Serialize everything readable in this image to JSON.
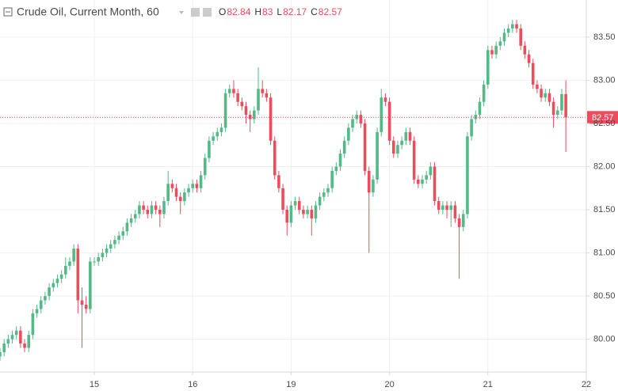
{
  "chart_data": {
    "type": "candlestick",
    "title": "Crude Oil, Current Month, 60",
    "ohlc_labels": [
      "O",
      "H",
      "L",
      "C"
    ],
    "up_color": "#53b987",
    "down_color": "#eb4d5c",
    "x": [
      -23,
      -22,
      -21,
      -20,
      -19,
      -18,
      -17,
      -16,
      -15,
      -14,
      -13,
      -12,
      -11,
      -10,
      -9,
      -8,
      -7,
      -6,
      -5,
      -4,
      -3,
      -2,
      -1,
      0,
      1,
      2,
      3,
      4,
      5,
      6,
      7,
      8,
      9,
      10,
      11,
      12,
      13,
      14,
      15,
      16,
      17,
      18,
      19,
      20,
      21,
      22,
      23,
      24,
      25,
      26,
      27,
      28,
      29,
      30,
      31,
      32,
      33,
      34,
      35,
      36,
      37,
      38,
      39,
      40,
      41,
      42,
      43,
      44,
      45,
      46,
      47,
      48,
      49,
      50,
      51,
      52,
      53,
      54,
      55,
      56,
      57,
      58,
      59,
      60,
      61,
      62,
      63,
      64,
      65,
      66,
      67,
      68,
      69,
      70,
      71,
      72,
      73,
      74,
      75,
      76,
      77,
      78,
      79,
      80,
      81,
      82,
      83,
      84,
      85,
      86,
      87,
      88,
      89,
      90,
      91,
      92,
      93,
      94,
      95,
      96,
      97,
      98,
      99,
      100,
      101,
      102,
      103,
      104,
      105,
      106,
      107,
      108,
      109,
      110,
      111,
      112,
      113,
      114,
      115
    ],
    "ohlc": [
      [
        79.8,
        79.9,
        79.75,
        79.85
      ],
      [
        79.85,
        80.0,
        79.8,
        79.95
      ],
      [
        79.95,
        80.05,
        79.9,
        80.0
      ],
      [
        80.0,
        80.1,
        79.95,
        80.05
      ],
      [
        80.05,
        80.15,
        80.0,
        80.1
      ],
      [
        80.1,
        80.15,
        79.9,
        79.95
      ],
      [
        79.95,
        80.0,
        79.85,
        79.9
      ],
      [
        79.9,
        80.1,
        79.85,
        80.05
      ],
      [
        80.05,
        80.35,
        80.0,
        80.3
      ],
      [
        80.3,
        80.4,
        80.25,
        80.35
      ],
      [
        80.35,
        80.5,
        80.3,
        80.45
      ],
      [
        80.45,
        80.55,
        80.4,
        80.5
      ],
      [
        80.5,
        80.65,
        80.45,
        80.6
      ],
      [
        80.6,
        80.7,
        80.55,
        80.65
      ],
      [
        80.65,
        80.75,
        80.6,
        80.7
      ],
      [
        80.7,
        80.8,
        80.65,
        80.75
      ],
      [
        80.75,
        80.95,
        80.7,
        80.85
      ],
      [
        80.85,
        80.95,
        80.8,
        80.9
      ],
      [
        80.9,
        81.1,
        80.85,
        81.05
      ],
      [
        81.05,
        81.1,
        80.3,
        80.45
      ],
      [
        80.45,
        80.6,
        79.9,
        80.4
      ],
      [
        80.4,
        80.5,
        80.3,
        80.35
      ],
      [
        80.35,
        80.95,
        80.3,
        80.9
      ],
      [
        80.9,
        80.95,
        80.85,
        80.9
      ],
      [
        80.9,
        81.0,
        80.85,
        80.95
      ],
      [
        80.95,
        81.05,
        80.9,
        81.0
      ],
      [
        81.0,
        81.1,
        80.95,
        81.05
      ],
      [
        81.05,
        81.15,
        81.0,
        81.1
      ],
      [
        81.1,
        81.2,
        81.05,
        81.15
      ],
      [
        81.15,
        81.25,
        81.1,
        81.2
      ],
      [
        81.2,
        81.3,
        81.15,
        81.25
      ],
      [
        81.25,
        81.4,
        81.2,
        81.35
      ],
      [
        81.35,
        81.45,
        81.3,
        81.4
      ],
      [
        81.4,
        81.5,
        81.35,
        81.45
      ],
      [
        81.45,
        81.6,
        81.4,
        81.55
      ],
      [
        81.55,
        81.6,
        81.45,
        81.5
      ],
      [
        81.5,
        81.55,
        81.4,
        81.45
      ],
      [
        81.45,
        81.6,
        81.4,
        81.55
      ],
      [
        81.55,
        81.6,
        81.45,
        81.5
      ],
      [
        81.5,
        81.55,
        81.3,
        81.45
      ],
      [
        81.45,
        81.65,
        81.4,
        81.6
      ],
      [
        81.6,
        81.95,
        81.55,
        81.8
      ],
      [
        81.8,
        81.85,
        81.7,
        81.75
      ],
      [
        81.75,
        81.8,
        81.6,
        81.65
      ],
      [
        81.65,
        81.7,
        81.45,
        81.6
      ],
      [
        81.6,
        81.75,
        81.55,
        81.7
      ],
      [
        81.7,
        81.8,
        81.65,
        81.75
      ],
      [
        81.75,
        81.85,
        81.7,
        81.8
      ],
      [
        81.8,
        81.85,
        81.7,
        81.75
      ],
      [
        81.75,
        81.95,
        81.7,
        81.9
      ],
      [
        81.9,
        82.15,
        81.85,
        82.1
      ],
      [
        82.1,
        82.35,
        82.05,
        82.3
      ],
      [
        82.3,
        82.4,
        82.25,
        82.35
      ],
      [
        82.35,
        82.45,
        82.3,
        82.4
      ],
      [
        82.4,
        82.5,
        82.35,
        82.45
      ],
      [
        82.45,
        82.9,
        82.4,
        82.85
      ],
      [
        82.85,
        82.95,
        82.8,
        82.9
      ],
      [
        82.9,
        83.0,
        82.8,
        82.85
      ],
      [
        82.85,
        82.9,
        82.7,
        82.75
      ],
      [
        82.75,
        82.8,
        82.65,
        82.7
      ],
      [
        82.7,
        82.75,
        82.5,
        82.6
      ],
      [
        82.6,
        82.65,
        82.4,
        82.55
      ],
      [
        82.55,
        82.7,
        82.5,
        82.65
      ],
      [
        82.65,
        83.15,
        82.6,
        82.9
      ],
      [
        82.9,
        83.0,
        82.8,
        82.85
      ],
      [
        82.85,
        82.9,
        82.75,
        82.8
      ],
      [
        82.8,
        82.85,
        82.25,
        82.3
      ],
      [
        82.3,
        82.35,
        81.85,
        81.9
      ],
      [
        81.9,
        81.95,
        81.7,
        81.75
      ],
      [
        81.75,
        81.8,
        81.45,
        81.5
      ],
      [
        81.5,
        81.55,
        81.2,
        81.35
      ],
      [
        81.35,
        81.6,
        81.3,
        81.55
      ],
      [
        81.55,
        81.65,
        81.5,
        81.6
      ],
      [
        81.6,
        81.65,
        81.45,
        81.5
      ],
      [
        81.5,
        81.55,
        81.4,
        81.45
      ],
      [
        81.45,
        81.55,
        81.4,
        81.5
      ],
      [
        81.5,
        81.55,
        81.2,
        81.4
      ],
      [
        81.4,
        81.6,
        81.35,
        81.55
      ],
      [
        81.55,
        81.7,
        81.5,
        81.65
      ],
      [
        81.65,
        81.75,
        81.6,
        81.7
      ],
      [
        81.7,
        81.8,
        81.65,
        81.75
      ],
      [
        81.75,
        82.0,
        81.7,
        81.95
      ],
      [
        81.95,
        82.05,
        81.9,
        82.0
      ],
      [
        82.0,
        82.2,
        81.95,
        82.15
      ],
      [
        82.15,
        82.35,
        82.1,
        82.3
      ],
      [
        82.3,
        82.5,
        82.25,
        82.45
      ],
      [
        82.45,
        82.6,
        82.4,
        82.55
      ],
      [
        82.55,
        82.65,
        82.5,
        82.6
      ],
      [
        82.6,
        82.65,
        82.45,
        82.5
      ],
      [
        82.5,
        82.55,
        81.9,
        81.95
      ],
      [
        81.95,
        82.0,
        81.0,
        81.7
      ],
      [
        81.7,
        81.9,
        81.65,
        81.85
      ],
      [
        81.85,
        82.45,
        81.8,
        82.4
      ],
      [
        82.4,
        82.9,
        82.35,
        82.8
      ],
      [
        82.8,
        82.85,
        82.7,
        82.75
      ],
      [
        82.75,
        82.8,
        82.25,
        82.3
      ],
      [
        82.3,
        82.35,
        82.1,
        82.15
      ],
      [
        82.15,
        82.3,
        82.1,
        82.25
      ],
      [
        82.25,
        82.35,
        82.2,
        82.3
      ],
      [
        82.3,
        82.45,
        82.25,
        82.4
      ],
      [
        82.4,
        82.45,
        82.25,
        82.3
      ],
      [
        82.3,
        82.35,
        81.8,
        81.85
      ],
      [
        81.85,
        81.9,
        81.75,
        81.8
      ],
      [
        81.8,
        81.9,
        81.75,
        81.85
      ],
      [
        81.85,
        81.95,
        81.8,
        81.9
      ],
      [
        81.9,
        82.05,
        81.85,
        82.0
      ],
      [
        82.0,
        82.05,
        81.55,
        81.6
      ],
      [
        81.6,
        81.65,
        81.45,
        81.5
      ],
      [
        81.5,
        81.6,
        81.45,
        81.55
      ],
      [
        81.55,
        81.6,
        81.4,
        81.5
      ],
      [
        81.5,
        81.6,
        81.3,
        81.55
      ],
      [
        81.55,
        81.6,
        81.35,
        81.4
      ],
      [
        81.4,
        81.45,
        80.7,
        81.3
      ],
      [
        81.3,
        81.5,
        81.25,
        81.45
      ],
      [
        81.45,
        82.4,
        81.4,
        82.35
      ],
      [
        82.35,
        82.6,
        82.3,
        82.55
      ],
      [
        82.55,
        82.65,
        82.5,
        82.6
      ],
      [
        82.6,
        82.8,
        82.55,
        82.75
      ],
      [
        82.75,
        83.0,
        82.7,
        82.95
      ],
      [
        82.95,
        83.4,
        82.9,
        83.35
      ],
      [
        83.35,
        83.4,
        83.25,
        83.3
      ],
      [
        83.3,
        83.45,
        83.25,
        83.4
      ],
      [
        83.4,
        83.5,
        83.35,
        83.45
      ],
      [
        83.45,
        83.6,
        83.4,
        83.55
      ],
      [
        83.55,
        83.65,
        83.5,
        83.6
      ],
      [
        83.6,
        83.7,
        83.55,
        83.65
      ],
      [
        83.65,
        83.7,
        83.55,
        83.6
      ],
      [
        83.6,
        83.65,
        83.35,
        83.4
      ],
      [
        83.4,
        83.45,
        83.25,
        83.3
      ],
      [
        83.3,
        83.35,
        83.15,
        83.2
      ],
      [
        83.2,
        83.25,
        82.9,
        82.95
      ],
      [
        82.95,
        83.0,
        82.85,
        82.9
      ],
      [
        82.9,
        82.95,
        82.75,
        82.8
      ],
      [
        82.8,
        82.9,
        82.75,
        82.85
      ],
      [
        82.85,
        82.9,
        82.7,
        82.75
      ],
      [
        82.75,
        82.8,
        82.45,
        82.6
      ],
      [
        82.6,
        82.7,
        82.55,
        82.65
      ],
      [
        82.65,
        82.9,
        82.6,
        82.84
      ],
      [
        82.84,
        83.0,
        82.17,
        82.57
      ]
    ],
    "xlim": [
      -23,
      120
    ],
    "xticks": [
      {
        "value": 0,
        "label": "15"
      },
      {
        "value": 24,
        "label": "16"
      },
      {
        "value": 48,
        "label": "19"
      },
      {
        "value": 72,
        "label": "20"
      },
      {
        "value": 96,
        "label": "21"
      },
      {
        "value": 120,
        "label": "22"
      }
    ],
    "ylim": [
      79.62,
      83.93
    ],
    "yticks": [
      {
        "value": 80,
        "label": "80.00"
      },
      {
        "value": 80.5,
        "label": "80.50"
      },
      {
        "value": 81,
        "label": "81.00"
      },
      {
        "value": 81.5,
        "label": "81.50"
      },
      {
        "value": 82,
        "label": "82.00"
      },
      {
        "value": 82.5,
        "label": "82.50"
      },
      {
        "value": 83,
        "label": "83.00"
      },
      {
        "value": 83.5,
        "label": "83.50"
      }
    ],
    "grid": true
  }
}
